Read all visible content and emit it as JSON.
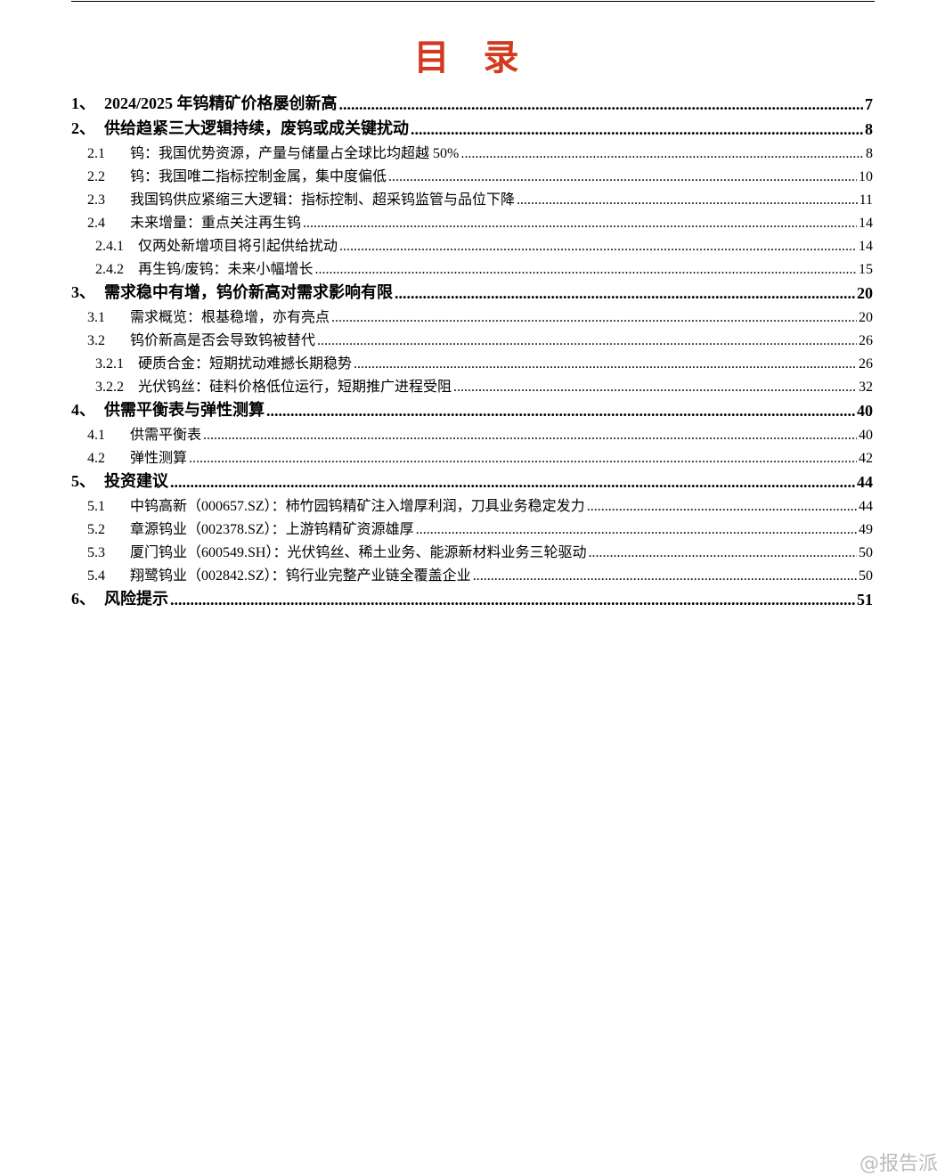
{
  "header": {
    "title": "目 录"
  },
  "entries": [
    {
      "level": 1,
      "number": "1、",
      "title": "2024/2025 年钨精矿价格屡创新高",
      "page": 7
    },
    {
      "level": 1,
      "number": "2、",
      "title": "供给趋紧三大逻辑持续，废钨或成关键扰动",
      "page": 8
    },
    {
      "level": 2,
      "number": "2.1",
      "title": "钨：我国优势资源，产量与储量占全球比均超越 50%",
      "page": 8
    },
    {
      "level": 2,
      "number": "2.2",
      "title": "钨：我国唯二指标控制金属，集中度偏低",
      "page": 10
    },
    {
      "level": 2,
      "number": "2.3",
      "title": "我国钨供应紧缩三大逻辑：指标控制、超采钨监管与品位下降",
      "page": 11
    },
    {
      "level": 2,
      "number": "2.4",
      "title": "未来增量：重点关注再生钨",
      "page": 14
    },
    {
      "level": 3,
      "number": "2.4.1",
      "title": "仅两处新增项目将引起供给扰动",
      "page": 14
    },
    {
      "level": 3,
      "number": "2.4.2",
      "title": "再生钨/废钨：未来小幅增长",
      "page": 15
    },
    {
      "level": 1,
      "number": "3、",
      "title": "需求稳中有增，钨价新高对需求影响有限",
      "page": 20
    },
    {
      "level": 2,
      "number": "3.1",
      "title": "需求概览：根基稳增，亦有亮点",
      "page": 20
    },
    {
      "level": 2,
      "number": "3.2",
      "title": "钨价新高是否会导致钨被替代",
      "page": 26
    },
    {
      "level": 3,
      "number": "3.2.1",
      "title": "硬质合金：短期扰动难撼长期稳势",
      "page": 26
    },
    {
      "level": 3,
      "number": "3.2.2",
      "title": "光伏钨丝：硅料价格低位运行，短期推广进程受阻",
      "page": 32
    },
    {
      "level": 1,
      "number": "4、",
      "title": "供需平衡表与弹性测算",
      "page": 40
    },
    {
      "level": 2,
      "number": "4.1",
      "title": "供需平衡表",
      "page": 40
    },
    {
      "level": 2,
      "number": "4.2",
      "title": "弹性测算",
      "page": 42
    },
    {
      "level": 1,
      "number": "5、",
      "title": "投资建议",
      "page": 44
    },
    {
      "level": 2,
      "number": "5.1",
      "title": "中钨高新（000657.SZ）：柿竹园钨精矿注入增厚利润，刀具业务稳定发力",
      "page": 44
    },
    {
      "level": 2,
      "number": "5.2",
      "title": "章源钨业（002378.SZ）：上游钨精矿资源雄厚",
      "page": 49
    },
    {
      "level": 2,
      "number": "5.3",
      "title": "厦门钨业（600549.SH）：光伏钨丝、稀土业务、能源新材料业务三轮驱动",
      "page": 50
    },
    {
      "level": 2,
      "number": "5.4",
      "title": "翔鹭钨业（002842.SZ）：钨行业完整产业链全覆盖企业",
      "page": 50
    },
    {
      "level": 1,
      "number": "6、",
      "title": "风险提示",
      "page": 51
    }
  ],
  "watermark": "@报告派"
}
